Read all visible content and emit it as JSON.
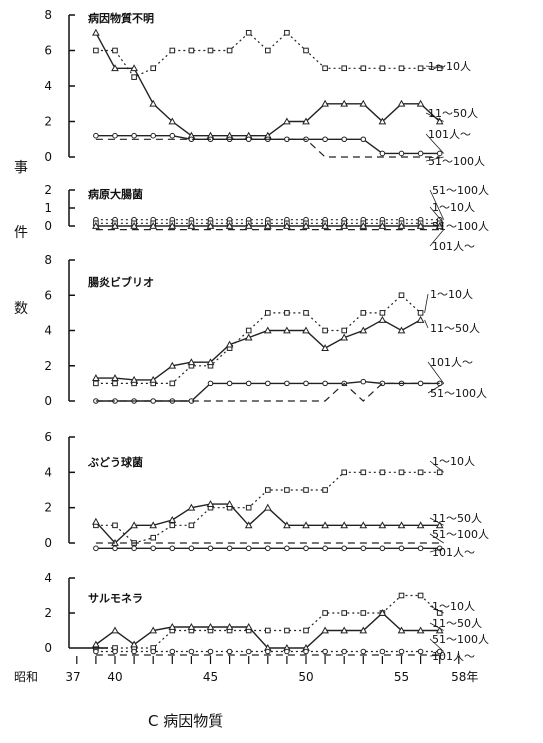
{
  "chart_data": {
    "type": "line",
    "caption": "C 病因物質",
    "ylabel": "事件数",
    "x": [
      38,
      39,
      40,
      41,
      42,
      43,
      44,
      45,
      46,
      47,
      48,
      49,
      50,
      51,
      52,
      53,
      54,
      55,
      56,
      57
    ],
    "x_ticks": [
      37,
      38,
      39,
      40,
      41,
      42,
      43,
      44,
      45,
      46,
      47,
      48,
      49,
      50,
      51,
      52,
      53,
      54,
      55,
      56,
      57,
      58
    ],
    "x_tick_labels": [
      "昭和",
      "37",
      "40",
      "45",
      "50",
      "55",
      "58年"
    ],
    "panels": [
      {
        "title": "病因物質不明",
        "ylim": [
          0,
          8
        ],
        "yticks": [
          "0",
          "2",
          "4",
          "6",
          "8"
        ],
        "series": [
          {
            "name": "1～10人",
            "label": "1～10人",
            "marker": "square",
            "line": "dotted",
            "values": [
              null,
              6,
              6,
              4.5,
              5,
              6,
              6,
              6,
              6,
              7,
              6,
              7,
              6,
              5,
              5,
              5,
              5,
              5,
              5,
              5
            ]
          },
          {
            "name": "11～50人",
            "label": "11～50人",
            "marker": "triangle",
            "line": "solid",
            "values": [
              null,
              7,
              5,
              5,
              3,
              2,
              1.2,
              1.2,
              1.2,
              1.2,
              1.2,
              2,
              2,
              3,
              3,
              3,
              2,
              3,
              3,
              2
            ]
          },
          {
            "name": "101人～",
            "label": "101人～",
            "marker": "circle",
            "line": "solid",
            "values": [
              null,
              1.2,
              1.2,
              1.2,
              1.2,
              1.2,
              1,
              1,
              1,
              1,
              1,
              1,
              1,
              1,
              1,
              1,
              0.2,
              0.2,
              0.2,
              0.2
            ]
          },
          {
            "name": "51～100人",
            "label": "51～100人",
            "marker": "none",
            "line": "dashed",
            "values": [
              null,
              1,
              1,
              1,
              1,
              1,
              1,
              1,
              1,
              1,
              1,
              1,
              1,
              0,
              0,
              0,
              0,
              0,
              0,
              0
            ]
          }
        ]
      },
      {
        "title": "病原大腸菌",
        "ylim": [
          0,
          2
        ],
        "yticks": [
          "0",
          "1",
          "2"
        ],
        "series": [
          {
            "name": "51～100人",
            "label": "51～100人",
            "marker": "circle",
            "line": "dotted",
            "values": [
              null,
              0.35,
              0.35,
              0.35,
              0.35,
              0.35,
              0.35,
              0.35,
              0.35,
              0.35,
              0.35,
              0.35,
              0.35,
              0.35,
              0.35,
              0.35,
              0.35,
              0.35,
              0.35,
              0.35
            ]
          },
          {
            "name": "1～10人",
            "label": "1～10人",
            "marker": "square",
            "line": "dotted",
            "values": [
              null,
              0.15,
              0.15,
              0.15,
              0.15,
              0.15,
              0.15,
              0.15,
              0.15,
              0.15,
              0.15,
              0.15,
              0.15,
              0.15,
              0.15,
              0.15,
              0.15,
              0.15,
              0.15,
              0.15
            ]
          },
          {
            "name": "51～100人 ",
            "label": "51～100人",
            "marker": "triangle",
            "line": "solid",
            "values": [
              null,
              0,
              0,
              0,
              0,
              0,
              0,
              0,
              0,
              0,
              0,
              0,
              0,
              0,
              0,
              0,
              0,
              0,
              0,
              0
            ]
          },
          {
            "name": "101人～",
            "label": "101人～",
            "marker": "none",
            "line": "dashed",
            "values": [
              null,
              -0.2,
              -0.2,
              -0.2,
              -0.2,
              -0.2,
              -0.2,
              -0.2,
              -0.2,
              -0.2,
              -0.2,
              -0.2,
              -0.2,
              -0.2,
              -0.2,
              -0.2,
              -0.2,
              -0.2,
              -0.2,
              -0.2
            ]
          }
        ]
      },
      {
        "title": "腸炎ビブリオ",
        "ylim": [
          0,
          8
        ],
        "yticks": [
          "0",
          "2",
          "4",
          "6",
          "8"
        ],
        "series": [
          {
            "name": "1～10人",
            "label": "1～10人",
            "marker": "square",
            "line": "dotted",
            "values": [
              null,
              1,
              1,
              1,
              1,
              1,
              2,
              2,
              3,
              4,
              5,
              5,
              5,
              4,
              4,
              5,
              5,
              6,
              5,
              null
            ]
          },
          {
            "name": "11～50人",
            "label": "11～50人",
            "marker": "triangle",
            "line": "solid",
            "values": [
              null,
              1.3,
              1.3,
              1.2,
              1.2,
              2,
              2.2,
              2.2,
              3.2,
              3.6,
              4,
              4,
              4,
              3,
              3.6,
              4,
              4.6,
              4,
              4.6,
              null
            ]
          },
          {
            "name": "101人～",
            "label": "101人～",
            "marker": "circle",
            "line": "solid",
            "values": [
              null,
              0,
              0,
              0,
              0,
              0,
              0,
              1,
              1,
              1,
              1,
              1,
              1,
              1,
              1,
              1.1,
              1,
              1,
              1,
              1
            ]
          },
          {
            "name": "51～100人",
            "label": "51～100人",
            "marker": "none",
            "line": "dashed",
            "values": [
              null,
              0,
              0,
              0,
              0,
              0,
              0,
              0,
              0,
              0,
              0,
              0,
              0,
              0,
              1,
              0,
              1,
              1,
              1,
              1
            ]
          }
        ]
      },
      {
        "title": "ぶどう球菌",
        "ylim": [
          0,
          6
        ],
        "yticks": [
          "0",
          "2",
          "4",
          "6"
        ],
        "series": [
          {
            "name": "1～10人",
            "label": "1～10人",
            "marker": "square",
            "line": "dotted",
            "values": [
              null,
              1,
              1,
              0,
              0.3,
              1,
              1,
              2,
              2,
              2,
              3,
              3,
              3,
              3,
              4,
              4,
              4,
              4,
              4,
              4
            ]
          },
          {
            "name": "11～50人",
            "label": "11～50人",
            "marker": "triangle",
            "line": "solid",
            "values": [
              null,
              1.2,
              0,
              1,
              1,
              1.3,
              2,
              2.2,
              2.2,
              1,
              2,
              1,
              1,
              1,
              1,
              1,
              1,
              1,
              1,
              1
            ]
          },
          {
            "name": "51～100人",
            "label": "51～100人",
            "marker": "none",
            "line": "dashed",
            "values": [
              null,
              0,
              0,
              0,
              0,
              0,
              0,
              0,
              0,
              0,
              0,
              0,
              0,
              0,
              0,
              0,
              0,
              0,
              0,
              0
            ]
          },
          {
            "name": "101人～",
            "label": "101人～",
            "marker": "circle",
            "line": "solid",
            "values": [
              null,
              -0.3,
              -0.3,
              -0.3,
              -0.3,
              -0.3,
              -0.3,
              -0.3,
              -0.3,
              -0.3,
              -0.3,
              -0.3,
              -0.3,
              -0.3,
              -0.3,
              -0.3,
              -0.3,
              -0.3,
              -0.3,
              -0.3
            ]
          }
        ]
      },
      {
        "title": "サルモネラ",
        "ylim": [
          0,
          4
        ],
        "yticks": [
          "0",
          "2",
          "4"
        ],
        "series": [
          {
            "name": "1～10人",
            "label": "1～10人",
            "marker": "square",
            "line": "dotted",
            "values": [
              null,
              0,
              0,
              0,
              0,
              1,
              1,
              1,
              1,
              1,
              1,
              1,
              1,
              2,
              2,
              2,
              2,
              3,
              3,
              2
            ]
          },
          {
            "name": "11～50人",
            "label": "11～50人",
            "marker": "triangle",
            "line": "solid",
            "values": [
              null,
              0.2,
              1,
              0.2,
              1,
              1.2,
              1.2,
              1.2,
              1.2,
              1.2,
              0,
              0,
              0,
              1,
              1,
              1,
              2,
              1,
              1,
              1
            ]
          },
          {
            "name": "51～100人",
            "label": "51～100人",
            "marker": "circle",
            "line": "dotted",
            "values": [
              null,
              -0.2,
              -0.2,
              -0.2,
              -0.2,
              -0.2,
              -0.2,
              -0.2,
              -0.2,
              -0.2,
              -0.2,
              -0.2,
              -0.2,
              -0.2,
              -0.2,
              -0.2,
              -0.2,
              -0.2,
              -0.2,
              -0.2
            ]
          },
          {
            "name": "101人～",
            "label": "101人～",
            "marker": "none",
            "line": "dashed",
            "values": [
              null,
              -0.4,
              -0.4,
              -0.4,
              -0.4,
              -0.4,
              -0.4,
              -0.4,
              -0.4,
              -0.4,
              -0.4,
              -0.4,
              -0.4,
              -0.4,
              -0.4,
              -0.4,
              -0.4,
              -0.4,
              -0.4,
              -0.4
            ]
          }
        ]
      }
    ]
  }
}
